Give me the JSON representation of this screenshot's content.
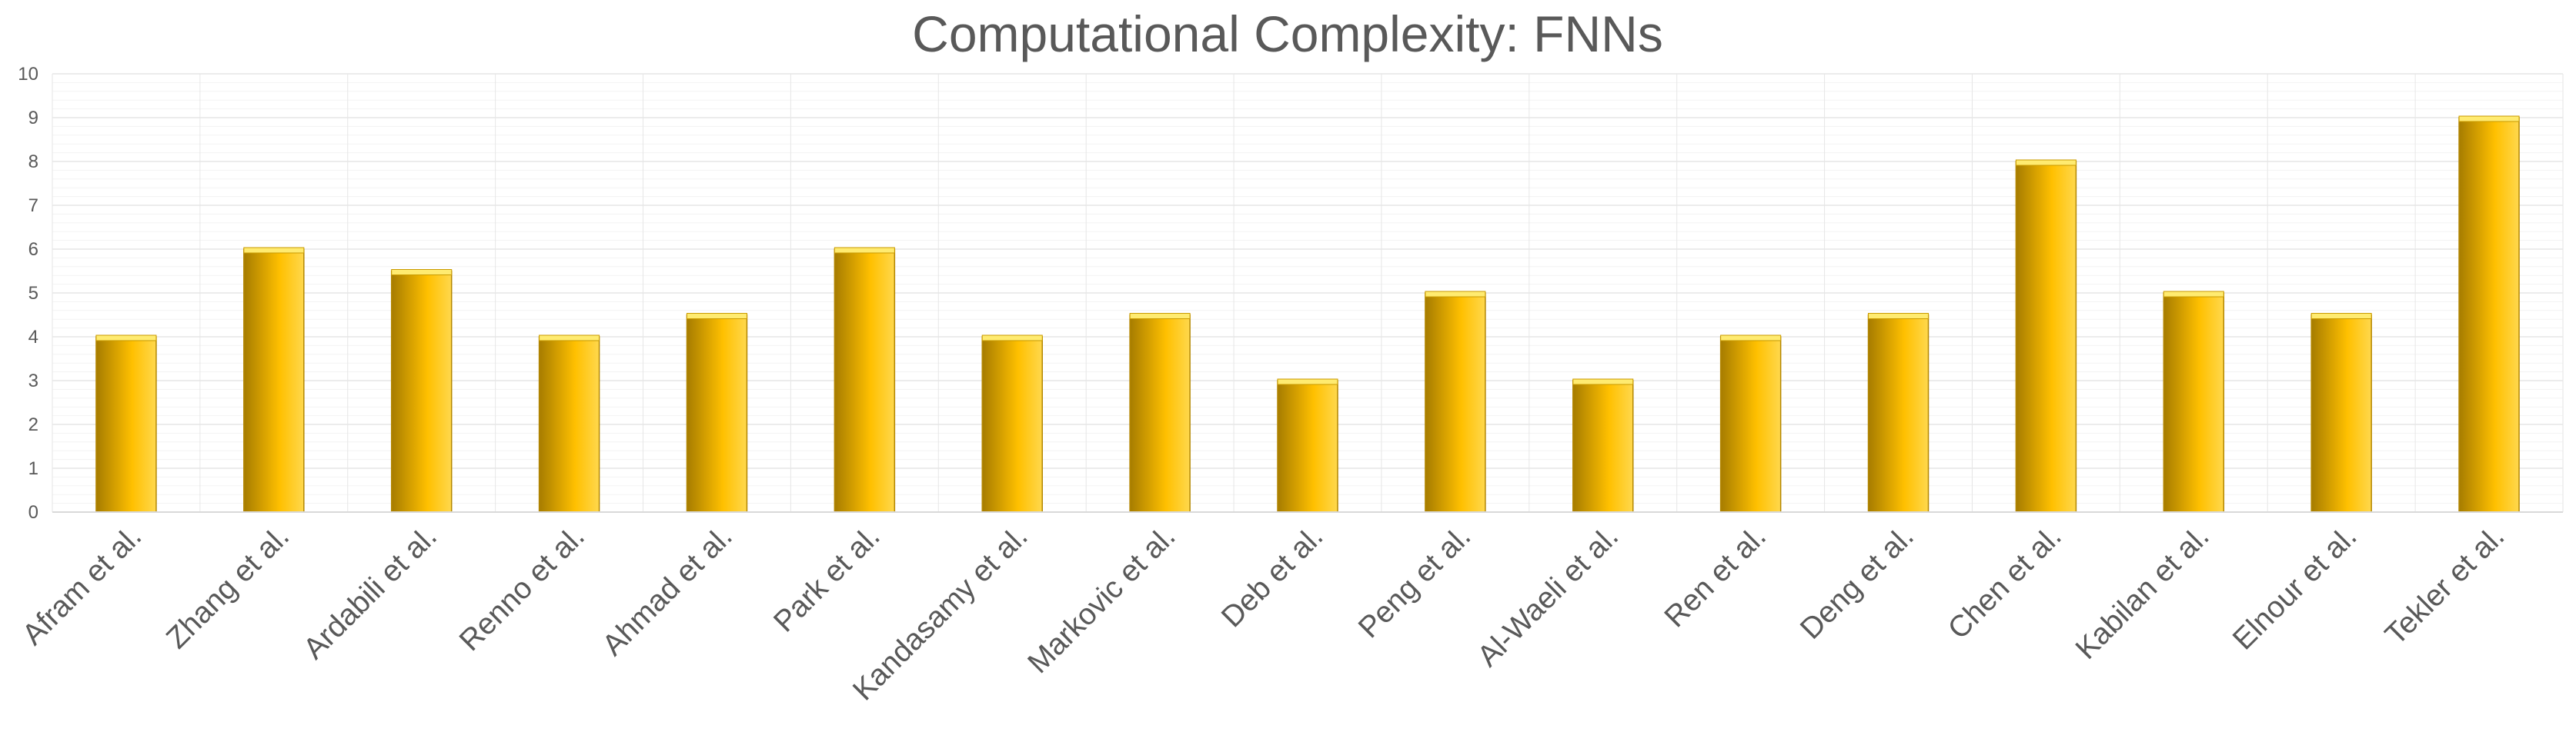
{
  "chart_data": {
    "type": "bar",
    "title": "Computational Complexity: FNNs",
    "xlabel": "",
    "ylabel": "",
    "categories": [
      "Afram et al.",
      "Zhang et al.",
      "Ardabili et al.",
      "Renno et al.",
      "Ahmad et al.",
      "Park et al.",
      "Kandasamy et al.",
      "Markovic et al.",
      "Deb et al.",
      "Peng et al.",
      "Al-Waeli et al.",
      "Ren et al.",
      "Deng et al.",
      "Chen et al.",
      "Kabilan et al.",
      "Elnour et al.",
      "Tekler et al."
    ],
    "values": [
      4,
      6,
      5.5,
      4,
      4.5,
      6,
      4,
      4.5,
      3,
      5,
      3,
      4,
      4.5,
      8,
      5,
      4.5,
      9
    ],
    "ylim": [
      0,
      10
    ],
    "yticks": [
      0,
      1,
      2,
      3,
      4,
      5,
      6,
      7,
      8,
      9,
      10
    ],
    "grid": true,
    "legend": "none",
    "colors": {
      "bar_dark": "#a67c00",
      "bar_mid": "#ffc000",
      "bar_light": "#ffd84d",
      "bar_top": "#ffeb70",
      "text": "#595959",
      "grid_major": "#e6e6e6",
      "grid_minor": "#f3f3f3",
      "axis": "#d9d9d9"
    }
  }
}
